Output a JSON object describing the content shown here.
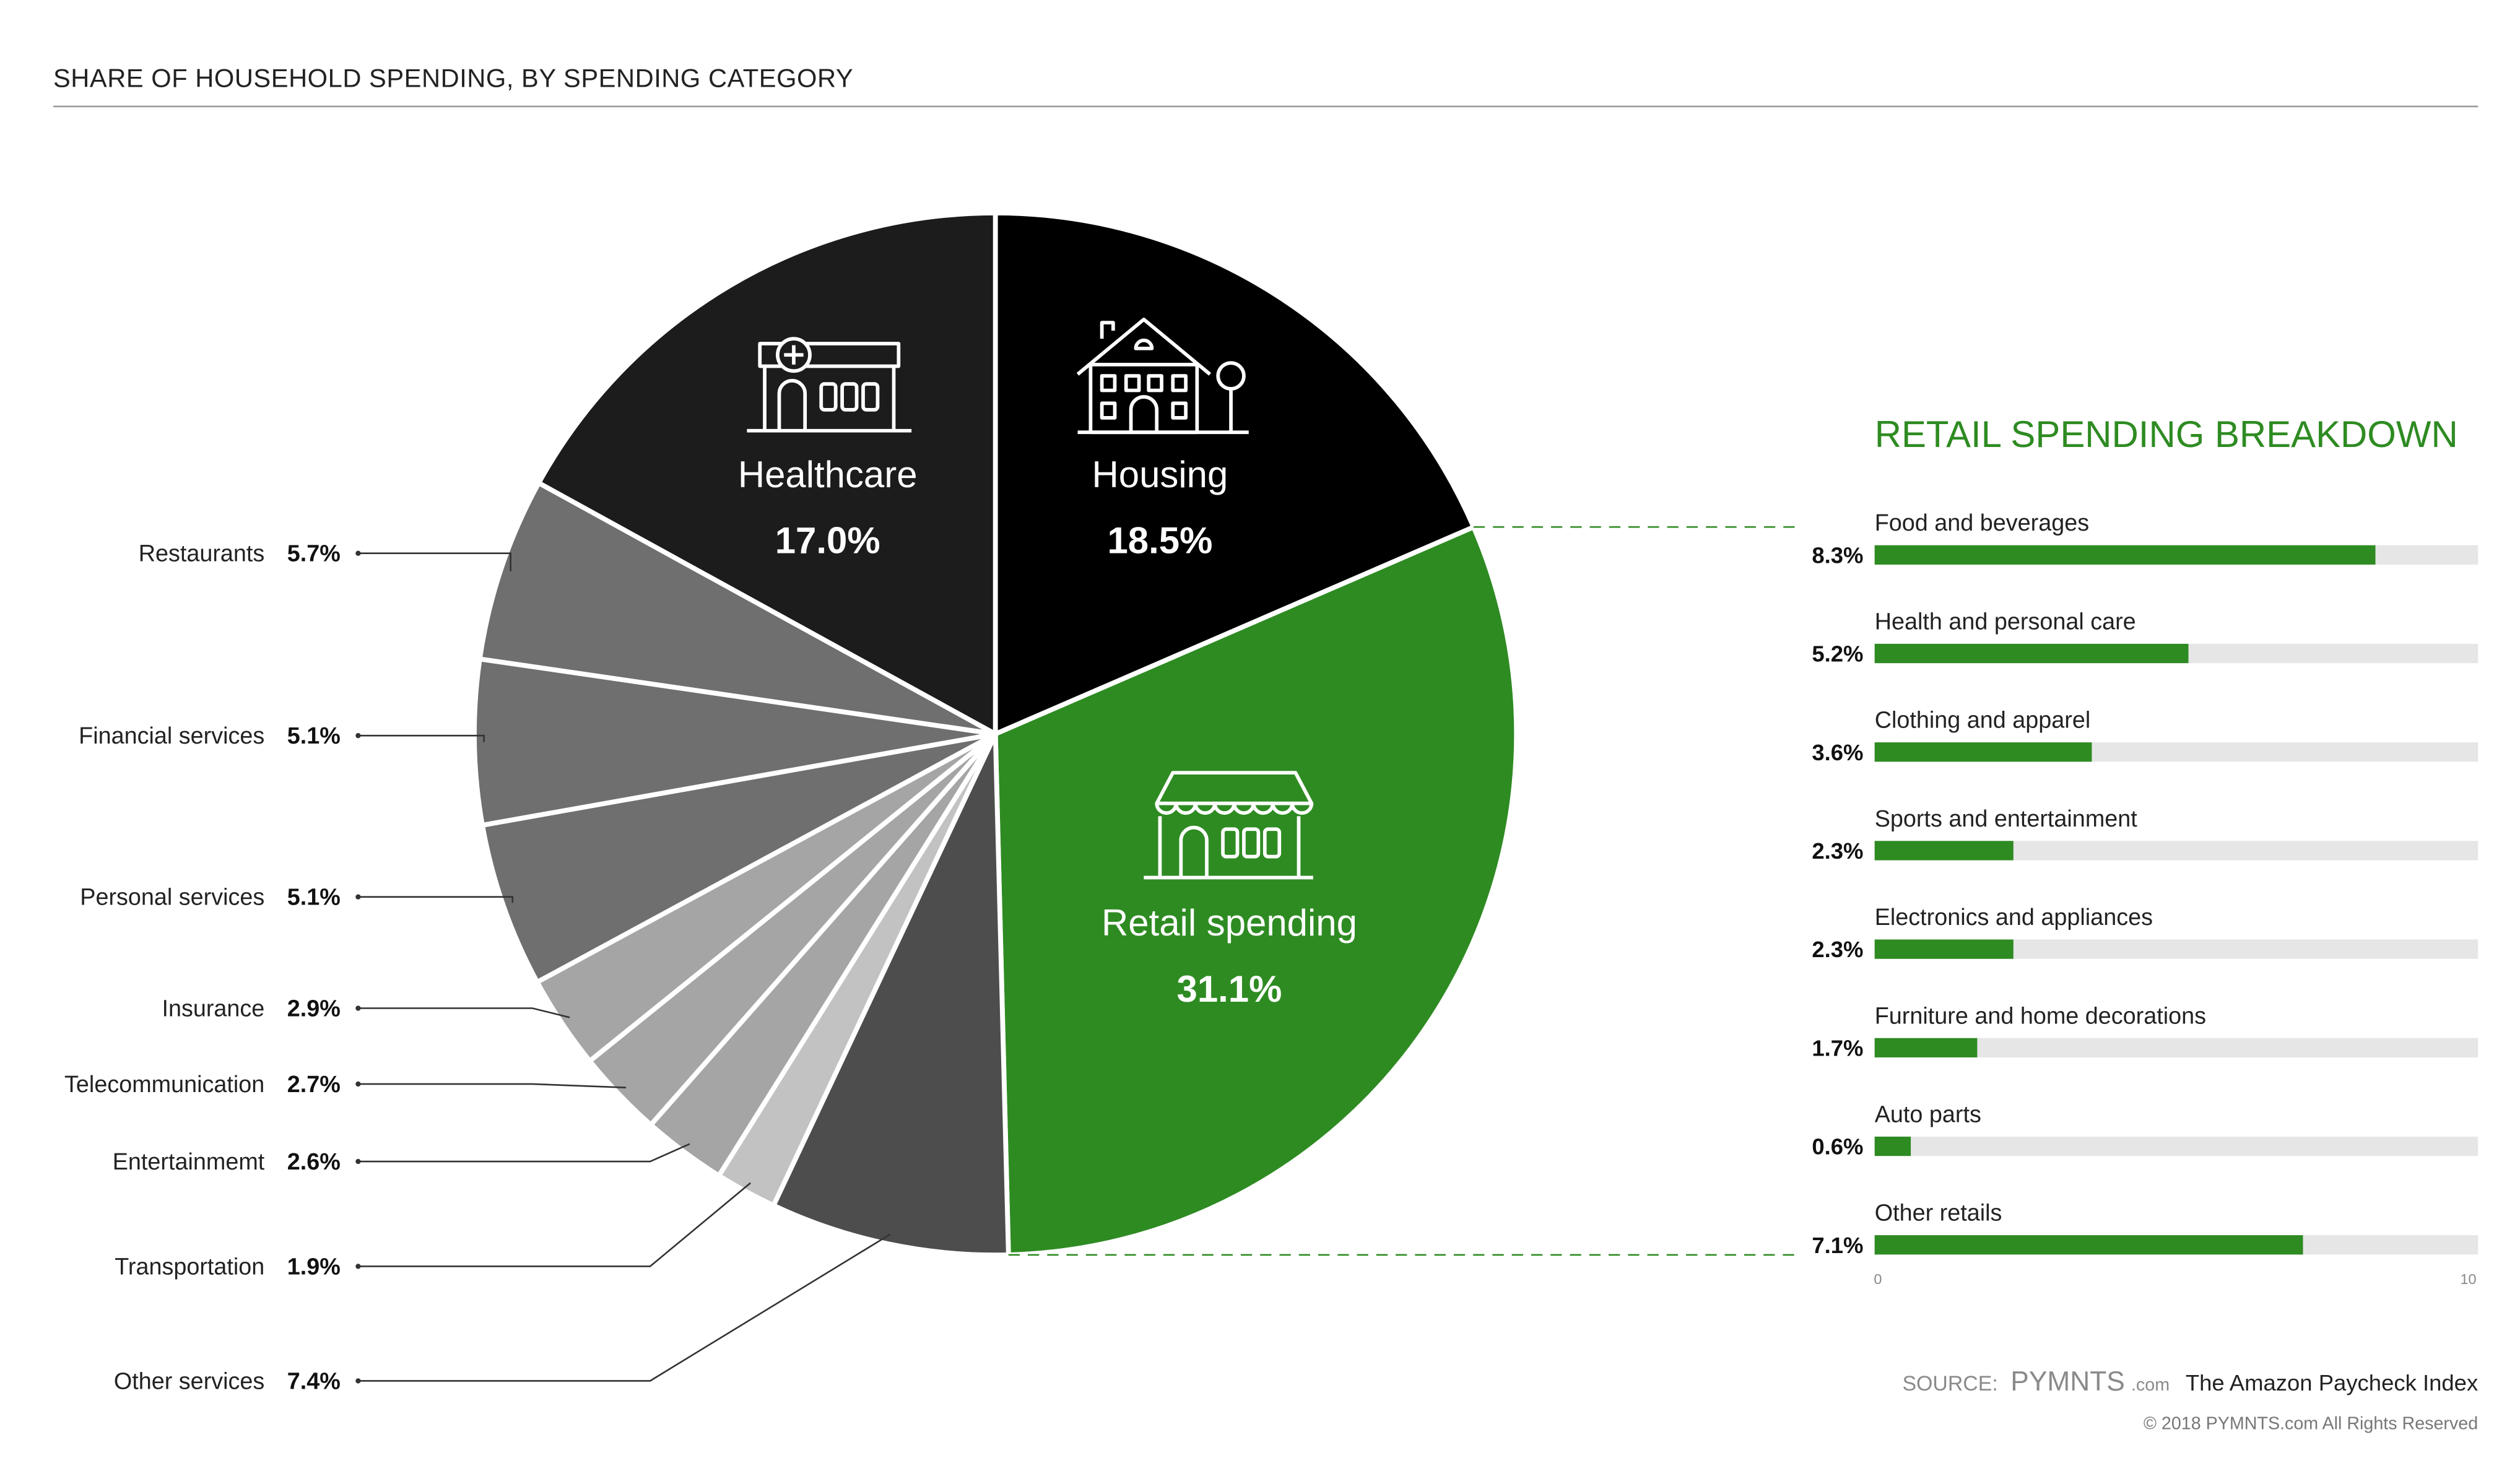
{
  "header": {
    "title": "SHARE OF HOUSEHOLD SPENDING, BY SPENDING CATEGORY"
  },
  "retail": {
    "title": "RETAIL SPENDING BREAKDOWN",
    "axis_ticks": [
      "0",
      "10"
    ]
  },
  "footer": {
    "source_label": "SOURCE:",
    "source_brand": "PYMNTS",
    "source_brand_suffix": ".com",
    "source_report": "The Amazon Paycheck Index",
    "copyright": "© 2018 PYMNTS.com All Rights Reserved"
  },
  "colors": {
    "green": "#2e8b22",
    "track": "#e6e6e6",
    "housing": "#000000",
    "healthcare": "#1c1c1c",
    "other_services": "#4d4d4d"
  },
  "icons": {
    "healthcare": "hospital-icon",
    "housing": "house-icon",
    "retail": "store-icon"
  },
  "chart_data": [
    {
      "type": "pie",
      "title": "SHARE OF HOUSEHOLD SPENDING, BY SPENDING CATEGORY",
      "slices": [
        {
          "label": "Housing",
          "value": 18.5,
          "display": "18.5%",
          "color": "#000000"
        },
        {
          "label": "Retail spending",
          "value": 31.1,
          "display": "31.1%",
          "color": "#2e8b22"
        },
        {
          "label": "Other services",
          "value": 7.4,
          "display": "7.4%",
          "color": "#4d4d4d"
        },
        {
          "label": "Transportation",
          "value": 1.9,
          "display": "1.9%",
          "color": "#c2c2c2"
        },
        {
          "label": "Entertainmemt",
          "value": 2.6,
          "display": "2.6%",
          "color": "#a5a5a5"
        },
        {
          "label": "Telecommunication",
          "value": 2.7,
          "display": "2.7%",
          "color": "#a5a5a5"
        },
        {
          "label": "Insurance",
          "value": 2.9,
          "display": "2.9%",
          "color": "#a5a5a5"
        },
        {
          "label": "Personal services",
          "value": 5.1,
          "display": "5.1%",
          "color": "#6f6f6f"
        },
        {
          "label": "Financial services",
          "value": 5.1,
          "display": "5.1%",
          "color": "#6f6f6f"
        },
        {
          "label": "Restaurants",
          "value": 5.7,
          "display": "5.7%",
          "color": "#6f6f6f"
        },
        {
          "label": "Healthcare",
          "value": 17.0,
          "display": "17.0%",
          "color": "#1c1c1c"
        }
      ]
    },
    {
      "type": "bar",
      "title": "RETAIL SPENDING BREAKDOWN",
      "orientation": "horizontal",
      "xlim": [
        0,
        10
      ],
      "categories": [
        "Food and beverages",
        "Health and personal care",
        "Clothing and apparel",
        "Sports and entertainment",
        "Electronics and appliances",
        "Furniture and home decorations",
        "Auto parts",
        "Other retails"
      ],
      "values": [
        8.3,
        5.2,
        3.6,
        2.3,
        2.3,
        1.7,
        0.6,
        7.1
      ],
      "value_labels": [
        "8.3%",
        "5.2%",
        "3.6%",
        "2.3%",
        "2.3%",
        "1.7%",
        "0.6%",
        "7.1%"
      ],
      "color": "#2e8b22"
    }
  ]
}
